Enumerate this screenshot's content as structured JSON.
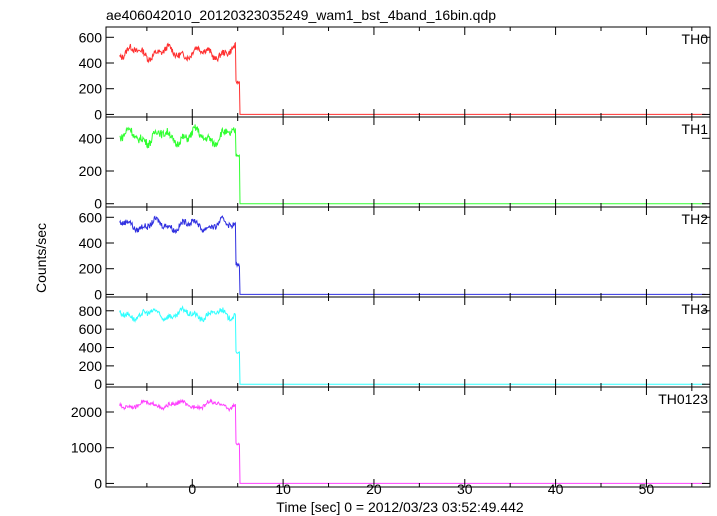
{
  "chart_data": {
    "type": "line",
    "title": "ae406042010_20120323035249_wam1_bst_4band_16bin.qdp",
    "xlabel": "Time [sec] 0 = 2012/03/23 03:52:49.442",
    "ylabel": "Counts/sec",
    "xlim": [
      -9.5,
      57
    ],
    "xticks": [
      0,
      10,
      20,
      30,
      40,
      50
    ],
    "grid": false,
    "panels": [
      {
        "name": "TH0",
        "color": "#ff3030",
        "ylim": [
          -20,
          680
        ],
        "yticks": [
          0,
          200,
          400,
          600
        ],
        "level": 480,
        "amp": 55,
        "tail": 250
      },
      {
        "name": "TH1",
        "color": "#30ff30",
        "ylim": [
          -20,
          530
        ],
        "yticks": [
          0,
          200,
          400
        ],
        "level": 410,
        "amp": 55,
        "tail": 300
      },
      {
        "name": "TH2",
        "color": "#3030e0",
        "ylim": [
          -20,
          680
        ],
        "yticks": [
          0,
          200,
          400,
          600
        ],
        "level": 540,
        "amp": 50,
        "tail": 230
      },
      {
        "name": "TH3",
        "color": "#30ffff",
        "ylim": [
          -30,
          950
        ],
        "yticks": [
          0,
          200,
          400,
          600,
          800
        ],
        "level": 760,
        "amp": 65,
        "tail": 350
      },
      {
        "name": "TH0123",
        "color": "#ff40ff",
        "ylim": [
          -100,
          2700
        ],
        "yticks": [
          0,
          1000,
          2000
        ],
        "level": 2200,
        "amp": 120,
        "tail": 1100
      }
    ],
    "burst_end": 5.2
  }
}
